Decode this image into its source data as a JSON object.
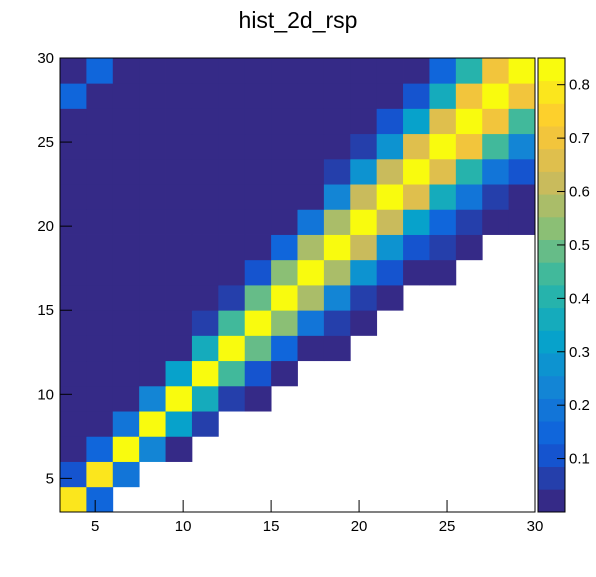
{
  "chart_data": {
    "type": "heatmap",
    "title": "hist_2d_rsp",
    "xbins": [
      3,
      4.5,
      6,
      7.5,
      9,
      10.5,
      12,
      13.5,
      15,
      16.5,
      18,
      19.5,
      21,
      22.5,
      24,
      25.5,
      27,
      28.5,
      30
    ],
    "ybins": [
      3,
      4.5,
      6,
      7.5,
      9,
      10.5,
      12,
      13.5,
      15,
      16.5,
      18,
      19.5,
      21,
      22.5,
      24,
      25.5,
      27,
      28.5,
      30
    ],
    "z": [
      [
        0.78,
        0.15,
        null,
        null,
        null,
        null,
        null,
        null,
        null,
        null,
        null,
        null,
        null,
        null,
        null,
        null,
        null,
        null
      ],
      [
        0.09,
        0.78,
        0.2,
        null,
        null,
        null,
        null,
        null,
        null,
        null,
        null,
        null,
        null,
        null,
        null,
        null,
        null,
        null
      ],
      [
        0.02,
        0.15,
        0.82,
        0.25,
        0.04,
        null,
        null,
        null,
        null,
        null,
        null,
        null,
        null,
        null,
        null,
        null,
        null,
        null
      ],
      [
        0.02,
        0.02,
        0.2,
        0.82,
        0.32,
        0.05,
        null,
        null,
        null,
        null,
        null,
        null,
        null,
        null,
        null,
        null,
        null,
        null
      ],
      [
        0.02,
        0.02,
        0.02,
        0.25,
        0.82,
        0.38,
        0.08,
        0.02,
        null,
        null,
        null,
        null,
        null,
        null,
        null,
        null,
        null,
        null
      ],
      [
        0.02,
        0.02,
        0.02,
        0.03,
        0.32,
        0.82,
        0.43,
        0.11,
        0.03,
        null,
        null,
        null,
        null,
        null,
        null,
        null,
        null,
        null
      ],
      [
        0.02,
        0.02,
        0.02,
        0.02,
        0.04,
        0.38,
        0.82,
        0.48,
        0.14,
        0.04,
        0.02,
        null,
        null,
        null,
        null,
        null,
        null,
        null
      ],
      [
        0.02,
        0.02,
        0.02,
        0.02,
        0.02,
        0.05,
        0.43,
        0.82,
        0.52,
        0.18,
        0.06,
        0.03,
        null,
        null,
        null,
        null,
        null,
        null
      ],
      [
        0.02,
        0.02,
        0.02,
        0.02,
        0.02,
        0.02,
        0.08,
        0.48,
        0.82,
        0.56,
        0.22,
        0.07,
        0.03,
        null,
        null,
        null,
        null,
        null
      ],
      [
        0.02,
        0.02,
        0.02,
        0.02,
        0.02,
        0.02,
        0.02,
        0.11,
        0.52,
        0.82,
        0.59,
        0.26,
        0.09,
        0.04,
        0.02,
        null,
        null,
        null
      ],
      [
        0.02,
        0.02,
        0.02,
        0.02,
        0.02,
        0.02,
        0.02,
        0.02,
        0.14,
        0.56,
        0.82,
        0.61,
        0.29,
        0.12,
        0.05,
        0.02,
        null,
        null
      ],
      [
        0.02,
        0.02,
        0.02,
        0.02,
        0.02,
        0.02,
        0.02,
        0.02,
        0.03,
        0.18,
        0.59,
        0.82,
        0.63,
        0.33,
        0.14,
        0.06,
        0.02,
        0.02
      ],
      [
        0.02,
        0.02,
        0.02,
        0.02,
        0.02,
        0.02,
        0.02,
        0.02,
        0.02,
        0.04,
        0.22,
        0.61,
        0.82,
        0.65,
        0.36,
        0.17,
        0.07,
        0.04
      ],
      [
        0.02,
        0.02,
        0.02,
        0.02,
        0.02,
        0.02,
        0.02,
        0.02,
        0.02,
        0.02,
        0.06,
        0.26,
        0.63,
        0.82,
        0.67,
        0.4,
        0.19,
        0.09
      ],
      [
        0.02,
        0.02,
        0.02,
        0.02,
        0.02,
        0.02,
        0.02,
        0.02,
        0.02,
        0.02,
        0.02,
        0.07,
        0.29,
        0.65,
        0.82,
        0.68,
        0.43,
        0.22
      ],
      [
        0.02,
        0.02,
        0.02,
        0.02,
        0.02,
        0.02,
        0.02,
        0.02,
        0.02,
        0.02,
        0.02,
        0.03,
        0.09,
        0.33,
        0.67,
        0.82,
        0.69,
        0.45
      ],
      [
        0.15,
        0.02,
        0.02,
        0.02,
        0.02,
        0.02,
        0.02,
        0.02,
        0.02,
        0.02,
        0.02,
        0.02,
        0.03,
        0.12,
        0.36,
        0.68,
        0.82,
        0.71
      ],
      [
        0.02,
        0.15,
        0.02,
        0.02,
        0.02,
        0.02,
        0.02,
        0.02,
        0.02,
        0.02,
        0.02,
        0.02,
        0.02,
        0.04,
        0.14,
        0.4,
        0.69,
        0.82
      ]
    ],
    "xlim": [
      3,
      30
    ],
    "ylim": [
      3,
      30
    ],
    "zlim": [
      0,
      0.85
    ],
    "xticks": [
      5,
      10,
      15,
      20,
      25,
      30
    ],
    "yticks": [
      5,
      10,
      15,
      20,
      25,
      30
    ],
    "zticks": [
      0.1,
      0.2,
      0.3,
      0.4,
      0.5,
      0.6,
      0.7,
      0.8
    ],
    "palette": [
      "#352a87",
      "#0f5cdd",
      "#1481d6",
      "#06a4ca",
      "#2eb7a4",
      "#87bf77",
      "#d1bb59",
      "#fec832",
      "#f9fb0e"
    ],
    "levels": 20
  }
}
